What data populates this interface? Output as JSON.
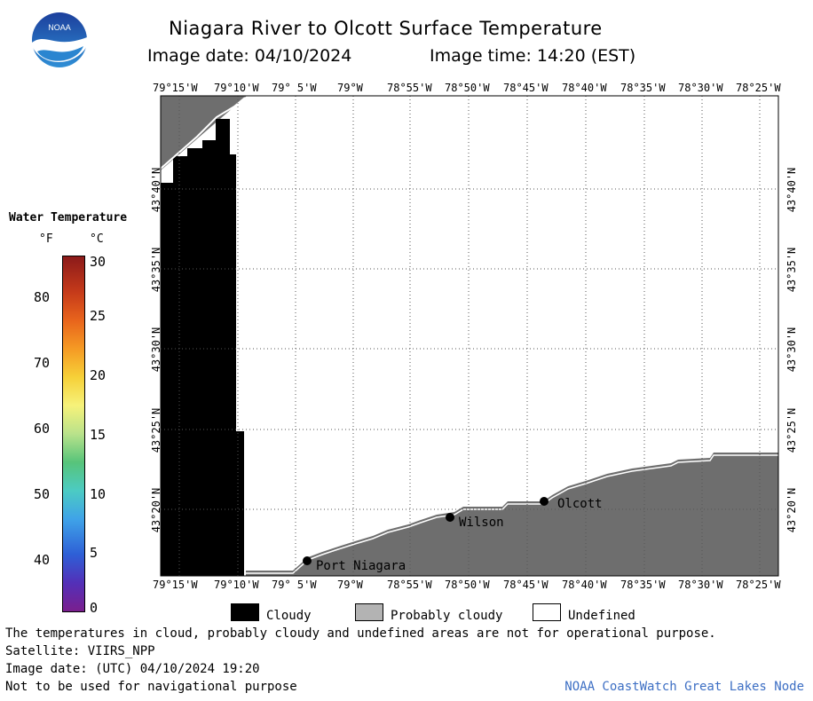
{
  "header": {
    "title": "Niagara River to Olcott Surface Temperature",
    "image_date": "Image date: 04/10/2024",
    "image_time": "Image time: 14:20 (EST)"
  },
  "logo": {
    "text": "NOAA"
  },
  "map": {
    "lon_labels": [
      "79°15'W",
      "79°10'W",
      "79° 5'W",
      "79°W",
      "78°55'W",
      "78°50'W",
      "78°45'W",
      "78°40'W",
      "78°35'W",
      "78°30'W",
      "78°25'W"
    ],
    "lat_labels": [
      "43°40'N",
      "43°35'N",
      "43°30'N",
      "43°25'N",
      "43°20'N"
    ],
    "places": [
      "Port Niagara",
      "Wilson",
      "Olcott"
    ],
    "colors": {
      "cloudy": "#000000",
      "probably_cloudy": "#6e6e6e",
      "undefined": "#ffffff",
      "grid": "#555555"
    }
  },
  "scale": {
    "title": "Water Temperature",
    "unit_f": "°F",
    "unit_c": "°C",
    "f_ticks": [
      "80",
      "70",
      "60",
      "50",
      "40"
    ],
    "c_ticks": [
      "30",
      "25",
      "20",
      "15",
      "10",
      "5",
      "0"
    ]
  },
  "legend": {
    "cloudy": "Cloudy",
    "probably_cloudy": "Probably cloudy",
    "undefined": "Undefined"
  },
  "footer": {
    "line1": "The temperatures in cloud, probably cloudy and undefined areas are not for operational purpose.",
    "line2": "Satellite: VIIRS_NPP",
    "line3": "Image date: (UTC) 04/10/2024  19:20",
    "line4": "Not to be used for navigational purpose",
    "credit": "NOAA CoastWatch Great Lakes Node"
  }
}
